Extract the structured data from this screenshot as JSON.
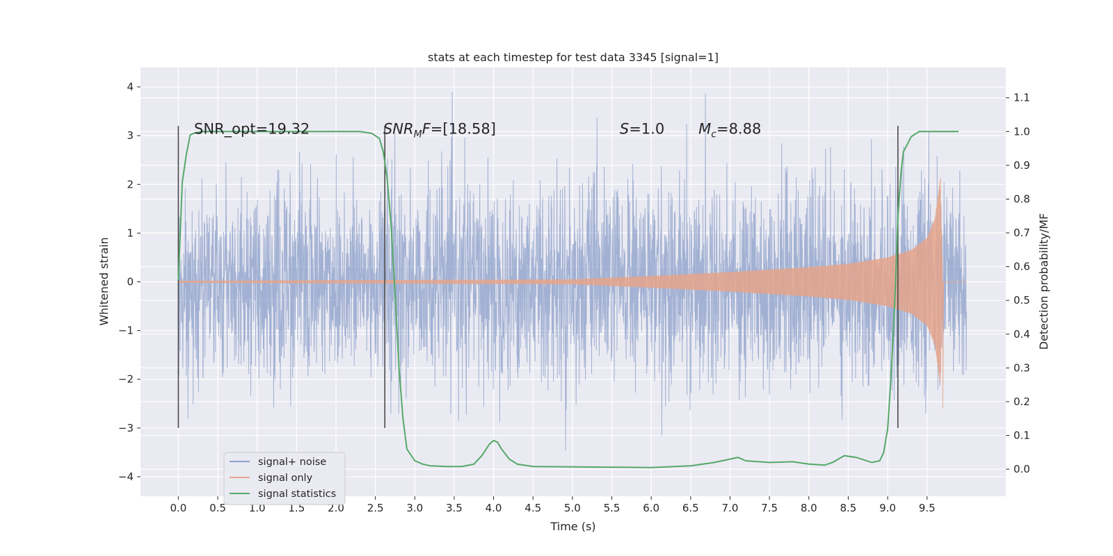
{
  "chart_data": {
    "type": "line",
    "title": "stats at each timestep for test data 3345 [signal=1]",
    "xlabel": "Time (s)",
    "ylabel": "Whitened strain",
    "y2label": "Detection probability/MF",
    "xlim": [
      -0.48,
      10.5
    ],
    "ylim": [
      -4.4,
      4.4
    ],
    "y2lim": [
      -0.08,
      1.19
    ],
    "x_ticks": [
      "0.0",
      "0.5",
      "1.0",
      "1.5",
      "2.0",
      "2.5",
      "3.0",
      "3.5",
      "4.0",
      "4.5",
      "5.0",
      "5.5",
      "6.0",
      "6.5",
      "7.0",
      "7.5",
      "8.0",
      "8.5",
      "9.0",
      "9.5"
    ],
    "y_ticks": [
      "4",
      "3",
      "2",
      "1",
      "0",
      "−1",
      "−2",
      "−3",
      "−4"
    ],
    "y2_ticks": [
      "1.1",
      "1.0",
      "0.9",
      "0.8",
      "0.7",
      "0.6",
      "0.5",
      "0.4",
      "0.3",
      "0.2",
      "0.1",
      "0.0"
    ],
    "grid": true,
    "legend_position": "lower-left",
    "annotations": [
      {
        "text": "SNR_opt=19.32",
        "x": 0.2,
        "y": 3.15
      },
      {
        "text": "SNR_MF=[18.58]",
        "x": 2.6,
        "y": 3.15
      },
      {
        "text": "S=1.0",
        "x": 5.6,
        "y": 3.15
      },
      {
        "text": "M_c=8.88",
        "x": 6.6,
        "y": 3.15
      }
    ],
    "vertical_markers": [
      {
        "x": 0.0,
        "y_range": [
          -3.0,
          3.2
        ]
      },
      {
        "x": 2.62,
        "y_range": [
          -3.0,
          3.2
        ]
      },
      {
        "x": 9.13,
        "y_range": [
          -3.0,
          3.2
        ]
      }
    ],
    "series": [
      {
        "name": "signal+ noise",
        "color": "#8da0cb",
        "axis": "left",
        "x_range": [
          0.0,
          10.0
        ],
        "approx_envelope": [
          -3.8,
          4.05
        ]
      },
      {
        "name": "signal only",
        "color": "#e5a58b",
        "axis": "left",
        "envelope_x": [
          0.0,
          5.0,
          6.0,
          7.0,
          8.0,
          8.5,
          9.0,
          9.3,
          9.5,
          9.6,
          9.67,
          9.7,
          10.0
        ],
        "envelope_y": [
          0.02,
          0.05,
          0.12,
          0.2,
          0.3,
          0.37,
          0.5,
          0.65,
          0.9,
          1.3,
          2.15,
          0.0,
          0.0
        ],
        "end_x": 9.7
      },
      {
        "name": "signal statistics",
        "color": "#55a868",
        "axis": "right",
        "x": [
          0.0,
          0.05,
          0.1,
          0.15,
          0.2,
          0.3,
          0.5,
          1.0,
          1.5,
          2.0,
          2.3,
          2.45,
          2.55,
          2.6,
          2.65,
          2.7,
          2.75,
          2.8,
          2.85,
          2.9,
          3.0,
          3.1,
          3.2,
          3.4,
          3.6,
          3.75,
          3.85,
          3.95,
          4.0,
          4.05,
          4.1,
          4.2,
          4.3,
          4.5,
          5.0,
          5.5,
          6.0,
          6.5,
          6.8,
          7.0,
          7.1,
          7.2,
          7.5,
          7.8,
          8.0,
          8.2,
          8.3,
          8.45,
          8.6,
          8.8,
          8.9,
          8.95,
          9.0,
          9.05,
          9.1,
          9.13,
          9.17,
          9.2,
          9.3,
          9.4,
          9.5,
          9.7,
          9.9
        ],
        "y": [
          0.56,
          0.85,
          0.93,
          0.99,
          0.995,
          1.0,
          1.0,
          1.0,
          1.0,
          1.0,
          1.0,
          0.995,
          0.98,
          0.94,
          0.86,
          0.72,
          0.52,
          0.3,
          0.15,
          0.06,
          0.025,
          0.015,
          0.01,
          0.008,
          0.008,
          0.015,
          0.04,
          0.075,
          0.085,
          0.08,
          0.06,
          0.03,
          0.015,
          0.008,
          0.007,
          0.006,
          0.005,
          0.01,
          0.02,
          0.03,
          0.035,
          0.025,
          0.02,
          0.022,
          0.015,
          0.012,
          0.02,
          0.04,
          0.035,
          0.02,
          0.025,
          0.05,
          0.12,
          0.3,
          0.55,
          0.75,
          0.88,
          0.94,
          0.985,
          1.0,
          1.0,
          1.0,
          1.0
        ]
      }
    ]
  }
}
